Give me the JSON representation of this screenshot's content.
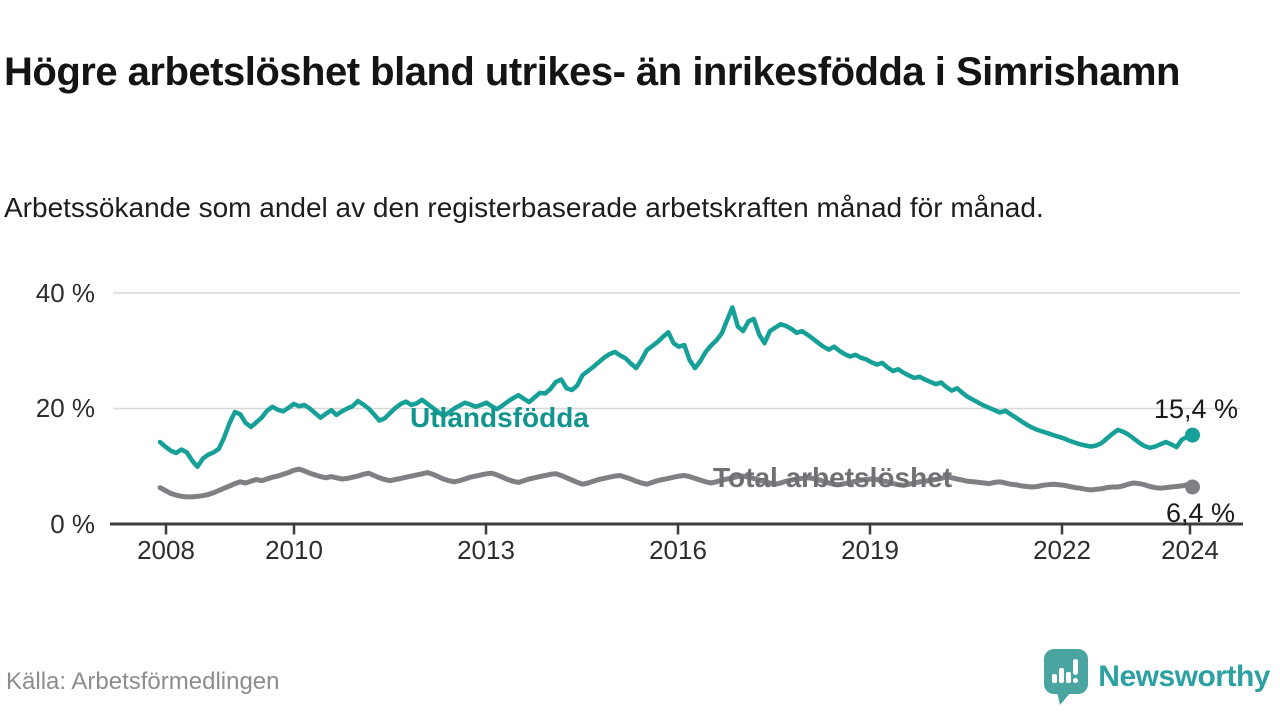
{
  "header": {
    "title": "Högre arbetslöshet bland utrikes- än inrikesfödda i Simrishamn",
    "subtitle": "Arbetssökande som andel av den registerbaserade arbetskraften månad för månad."
  },
  "footer": {
    "source": "Källa: Arbetsförmedlingen",
    "brand": "Newsworthy",
    "brand_color": "#2da1a1",
    "brand_icon": "newsworthy-speech-bubble-bar-chart"
  },
  "chart_data": {
    "type": "line",
    "unit": "%",
    "x_range": [
      "2008-01",
      "2024-02"
    ],
    "x_points_per_year": 12,
    "ylim": [
      0,
      40
    ],
    "grid": "horizontal",
    "y_ticks": [
      "0 %",
      "20 %",
      "40 %"
    ],
    "y_tick_values": [
      0,
      20,
      40
    ],
    "x_ticks": [
      "2008",
      "2010",
      "2013",
      "2016",
      "2019",
      "2022",
      "2024"
    ],
    "x_tick_years": [
      2008,
      2010,
      2013,
      2016,
      2019,
      2022,
      2024
    ],
    "axis_color": "#3d3d3d",
    "grid_color": "#d8d8d8",
    "series": [
      {
        "name": "Utlandsfödda",
        "color": "#16a098",
        "end_label": "15,4 %",
        "end_value": 15.4,
        "values": [
          14.2,
          13.4,
          12.7,
          12.3,
          12.9,
          12.4,
          11.0,
          9.9,
          11.3,
          12.0,
          12.4,
          13.0,
          15.0,
          17.5,
          19.4,
          19.0,
          17.5,
          16.8,
          17.6,
          18.4,
          19.6,
          20.3,
          19.8,
          19.5,
          20.1,
          20.8,
          20.4,
          20.6,
          20.0,
          19.2,
          18.4,
          19.1,
          19.7,
          18.9,
          19.5,
          20.0,
          20.4,
          21.3,
          20.7,
          20.0,
          19.0,
          17.9,
          18.3,
          19.2,
          20.1,
          20.8,
          21.2,
          20.6,
          20.9,
          21.5,
          20.8,
          20.1,
          19.4,
          18.7,
          19.3,
          20.0,
          20.5,
          21.0,
          20.7,
          20.3,
          20.6,
          21.0,
          20.4,
          19.9,
          20.5,
          21.2,
          21.8,
          22.3,
          21.7,
          21.1,
          21.9,
          22.7,
          22.6,
          23.4,
          24.6,
          25.0,
          23.5,
          23.2,
          24.0,
          25.8,
          26.5,
          27.2,
          28.0,
          28.8,
          29.4,
          29.8,
          29.2,
          28.7,
          27.8,
          27.0,
          28.4,
          30.1,
          30.8,
          31.5,
          32.4,
          33.2,
          31.3,
          30.7,
          31.0,
          28.4,
          27.0,
          28.2,
          29.8,
          30.9,
          31.8,
          33.0,
          35.3,
          37.5,
          34.2,
          33.4,
          35.1,
          35.5,
          32.8,
          31.3,
          33.4,
          34.0,
          34.6,
          34.3,
          33.8,
          33.1,
          33.4,
          32.8,
          32.1,
          31.4,
          30.7,
          30.2,
          30.7,
          30.0,
          29.4,
          29.0,
          29.3,
          28.8,
          28.5,
          28.0,
          27.6,
          27.9,
          27.1,
          26.5,
          26.8,
          26.2,
          25.7,
          25.3,
          25.5,
          25.0,
          24.6,
          24.2,
          24.5,
          23.7,
          23.1,
          23.5,
          22.7,
          22.0,
          21.5,
          21.0,
          20.5,
          20.1,
          19.7,
          19.3,
          19.6,
          19.0,
          18.4,
          17.8,
          17.2,
          16.7,
          16.3,
          16.0,
          15.7,
          15.4,
          15.1,
          14.8,
          14.4,
          14.1,
          13.8,
          13.6,
          13.4,
          13.6,
          14.0,
          14.8,
          15.6,
          16.3,
          16.0,
          15.5,
          14.8,
          14.1,
          13.5,
          13.2,
          13.4,
          13.8,
          14.2,
          13.8,
          13.3,
          14.6,
          15.1,
          15.4
        ]
      },
      {
        "name": "Total arbetslöshet",
        "color": "#7f8083",
        "end_label": "6,4 %",
        "end_value": 6.4,
        "values": [
          6.3,
          5.8,
          5.3,
          5.0,
          4.8,
          4.7,
          4.7,
          4.8,
          4.9,
          5.1,
          5.4,
          5.8,
          6.2,
          6.6,
          7.0,
          7.3,
          7.1,
          7.4,
          7.7,
          7.5,
          7.8,
          8.1,
          8.3,
          8.6,
          8.9,
          9.3,
          9.5,
          9.2,
          8.8,
          8.5,
          8.2,
          8.0,
          8.2,
          8.0,
          7.8,
          7.9,
          8.1,
          8.3,
          8.6,
          8.8,
          8.4,
          8.0,
          7.7,
          7.5,
          7.7,
          7.9,
          8.1,
          8.3,
          8.5,
          8.7,
          8.9,
          8.6,
          8.2,
          7.8,
          7.5,
          7.3,
          7.5,
          7.8,
          8.1,
          8.3,
          8.5,
          8.7,
          8.8,
          8.5,
          8.1,
          7.7,
          7.4,
          7.2,
          7.5,
          7.8,
          8.0,
          8.2,
          8.4,
          8.6,
          8.7,
          8.4,
          8.0,
          7.6,
          7.2,
          6.9,
          7.1,
          7.4,
          7.7,
          7.9,
          8.1,
          8.3,
          8.4,
          8.1,
          7.8,
          7.4,
          7.1,
          6.9,
          7.2,
          7.5,
          7.7,
          7.9,
          8.1,
          8.3,
          8.4,
          8.2,
          7.9,
          7.6,
          7.3,
          7.1,
          7.3,
          7.6,
          7.8,
          8.0,
          8.2,
          8.3,
          8.1,
          7.9,
          7.6,
          7.3,
          7.1,
          6.9,
          7.1,
          7.4,
          7.6,
          7.8,
          7.9,
          8.0,
          7.9,
          7.7,
          7.4,
          7.1,
          6.9,
          6.8,
          7.0,
          7.2,
          7.4,
          7.6,
          7.7,
          7.8,
          7.7,
          7.5,
          7.3,
          7.0,
          6.8,
          6.7,
          6.9,
          7.1,
          7.3,
          7.4,
          7.6,
          7.7,
          7.9,
          8.2,
          8.0,
          7.8,
          7.6,
          7.4,
          7.3,
          7.2,
          7.1,
          7.0,
          7.2,
          7.3,
          7.1,
          6.9,
          6.8,
          6.6,
          6.5,
          6.4,
          6.5,
          6.7,
          6.8,
          6.9,
          6.8,
          6.7,
          6.5,
          6.3,
          6.2,
          6.0,
          5.9,
          6.0,
          6.1,
          6.3,
          6.4,
          6.4,
          6.6,
          6.9,
          7.1,
          7.0,
          6.8,
          6.5,
          6.3,
          6.2,
          6.3,
          6.4,
          6.5,
          6.6,
          6.8,
          6.4
        ]
      }
    ]
  }
}
